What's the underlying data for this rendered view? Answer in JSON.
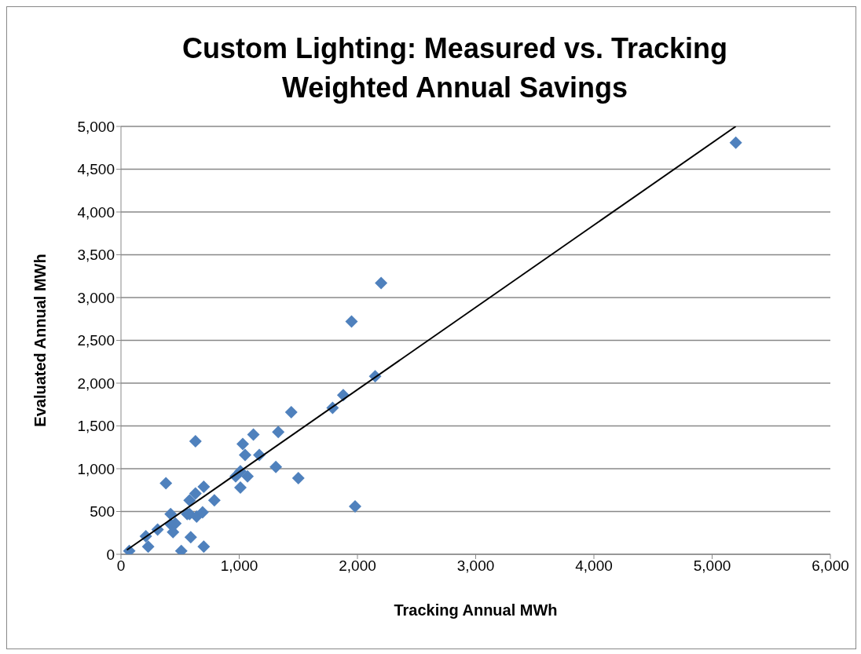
{
  "chart_data": {
    "type": "scatter",
    "title": "Custom Lighting: Measured vs. Tracking Weighted Annual Savings",
    "xlabel": "Tracking Annual MWh",
    "ylabel": "Evaluated Annual MWh",
    "xlim": [
      0,
      6000
    ],
    "xticks": [
      0,
      {
        "value": 1000,
        "label": "1,000"
      },
      {
        "value": 2000,
        "label": "2,000"
      },
      {
        "value": 3000,
        "label": "3,000"
      },
      {
        "value": 4000,
        "label": "4,000"
      },
      {
        "value": 5000,
        "label": "5,000"
      },
      {
        "value": 6000,
        "label": "6,000"
      }
    ],
    "ylim": [
      0,
      5000
    ],
    "yticks": [
      0,
      500,
      {
        "value": 1000,
        "label": "1,000"
      },
      {
        "value": 1500,
        "label": "1,500"
      },
      {
        "value": 2000,
        "label": "2,000"
      },
      {
        "value": 2500,
        "label": "2,500"
      },
      {
        "value": 3000,
        "label": "3,000"
      },
      {
        "value": 3500,
        "label": "3,500"
      },
      {
        "value": 4000,
        "label": "4,000"
      },
      {
        "value": 4500,
        "label": "4,500"
      },
      {
        "value": 5000,
        "label": "5,000"
      }
    ],
    "grid": "y",
    "legend": false,
    "series": [
      {
        "color": "#4f81bd",
        "marker": "diamond",
        "x": [
          70,
          210,
          230,
          310,
          380,
          420,
          420,
          440,
          460,
          510,
          590,
          580,
          560,
          580,
          630,
          640,
          630,
          700,
          690,
          700,
          790,
          970,
          1010,
          1070,
          1010,
          1030,
          1050,
          1120,
          1170,
          1310,
          1330,
          1440,
          1500,
          1790,
          1880,
          1950,
          1980,
          2150,
          2200,
          5200
        ],
        "values": [
          40,
          210,
          90,
          290,
          830,
          470,
          350,
          260,
          360,
          40,
          200,
          630,
          470,
          470,
          1320,
          440,
          710,
          790,
          490,
          90,
          630,
          910,
          780,
          910,
          970,
          1290,
          1160,
          1400,
          1160,
          1020,
          1430,
          1660,
          890,
          1710,
          1860,
          2720,
          560,
          2080,
          3170,
          4810
        ]
      },
      {
        "type": "line",
        "marker": "none",
        "color": "#000000",
        "x": [
          50,
          5200
        ],
        "values": [
          50,
          5000
        ]
      }
    ]
  }
}
